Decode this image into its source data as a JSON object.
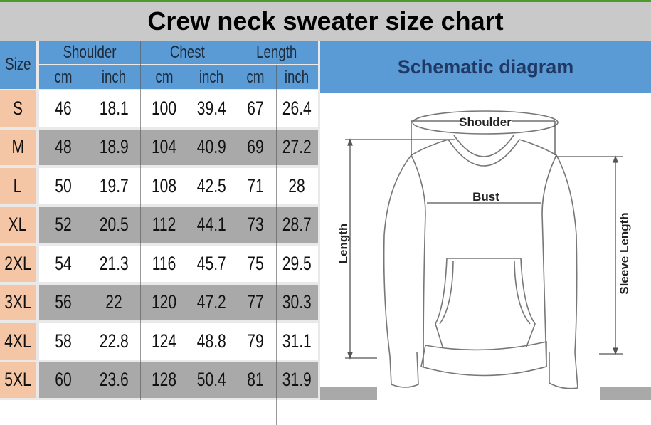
{
  "title": "Crew neck sweater size chart",
  "table": {
    "size_header": "Size",
    "groups": [
      "Shoulder",
      "Chest",
      "Length"
    ],
    "units": [
      "cm",
      "inch",
      "cm",
      "inch",
      "cm",
      "inch"
    ],
    "rows": [
      [
        "S",
        "46",
        "18.1",
        "100",
        "39.4",
        "67",
        "26.4"
      ],
      [
        "M",
        "48",
        "18.9",
        "104",
        "40.9",
        "69",
        "27.2"
      ],
      [
        "L",
        "50",
        "19.7",
        "108",
        "42.5",
        "71",
        "28"
      ],
      [
        "XL",
        "52",
        "20.5",
        "112",
        "44.1",
        "73",
        "28.7"
      ],
      [
        "2XL",
        "54",
        "21.3",
        "116",
        "45.7",
        "75",
        "29.5"
      ],
      [
        "3XL",
        "56",
        "22",
        "120",
        "47.2",
        "77",
        "30.3"
      ],
      [
        "4XL",
        "58",
        "22.8",
        "124",
        "48.8",
        "79",
        "31.1"
      ],
      [
        "5XL",
        "60",
        "23.6",
        "128",
        "50.4",
        "81",
        "31.9"
      ]
    ]
  },
  "diagram": {
    "title": "Schematic diagram",
    "labels": {
      "shoulder": "Shoulder",
      "bust": "Bust",
      "length": "Length",
      "sleeve": "Sleeve Length"
    }
  },
  "colors": {
    "header_blue": "#5b9bd5",
    "size_cell": "#f5c6a6",
    "row_gray": "#a9a9a9",
    "title_bar": "#c9c9c9"
  }
}
